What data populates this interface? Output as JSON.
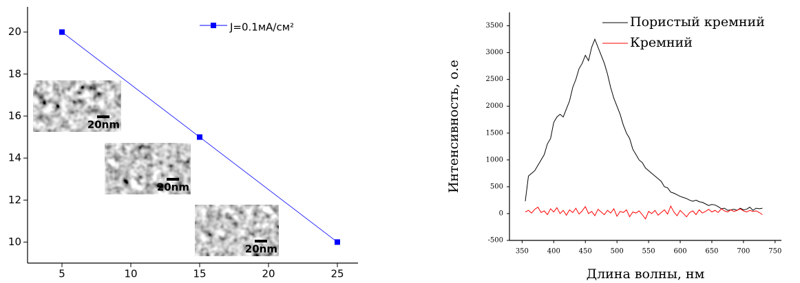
{
  "chart_data": [
    {
      "type": "line",
      "x": [
        5,
        15,
        25
      ],
      "xlim": [
        2.5,
        26.5
      ],
      "ylim": [
        9,
        21.2
      ],
      "xticks": [
        5,
        10,
        15,
        20,
        25
      ],
      "yticks": [
        10,
        12,
        14,
        16,
        18,
        20
      ],
      "series": [
        {
          "name": "J=0.1мА/см²",
          "color": "#0000ff",
          "values": [
            20,
            15,
            10
          ]
        }
      ],
      "annotations": [
        "20nm",
        "20nm",
        "20nm"
      ]
    },
    {
      "type": "line",
      "x_label": "Длина волны, нм",
      "y_label": "Интенсивность, о.е",
      "x": [
        355,
        360,
        365,
        370,
        375,
        380,
        385,
        390,
        395,
        400,
        405,
        410,
        415,
        420,
        425,
        430,
        435,
        440,
        445,
        450,
        455,
        460,
        465,
        470,
        475,
        480,
        485,
        490,
        495,
        500,
        505,
        510,
        515,
        520,
        525,
        530,
        535,
        540,
        545,
        550,
        555,
        560,
        565,
        570,
        575,
        580,
        585,
        590,
        595,
        600,
        605,
        610,
        615,
        620,
        625,
        630,
        635,
        640,
        645,
        650,
        655,
        660,
        665,
        670,
        675,
        680,
        685,
        690,
        695,
        700,
        705,
        710,
        715,
        720,
        725,
        730
      ],
      "xlim": [
        330,
        760
      ],
      "ylim": [
        -500,
        3750
      ],
      "xticks": [
        350,
        400,
        450,
        500,
        550,
        600,
        650,
        700,
        750
      ],
      "yticks": [
        -500,
        0,
        500,
        1000,
        1500,
        2000,
        2500,
        3000,
        3500
      ],
      "series": [
        {
          "name": "Пористый кремний",
          "color": "#000000",
          "values": [
            230,
            700,
            750,
            800,
            900,
            1000,
            1100,
            1300,
            1400,
            1700,
            1800,
            1850,
            1800,
            1950,
            2100,
            2350,
            2500,
            2700,
            2800,
            2950,
            2850,
            3100,
            3250,
            3100,
            2950,
            2800,
            2600,
            2350,
            2150,
            2000,
            1850,
            1650,
            1500,
            1400,
            1200,
            1100,
            1000,
            950,
            850,
            800,
            750,
            700,
            650,
            600,
            500,
            480,
            400,
            380,
            350,
            320,
            300,
            280,
            250,
            230,
            250,
            220,
            210,
            180,
            150,
            170,
            160,
            130,
            90,
            100,
            60,
            70,
            80,
            60,
            100,
            70,
            80,
            120,
            60,
            100,
            90,
            100
          ]
        },
        {
          "name": "Кремний",
          "color": "#ff0000",
          "values": [
            30,
            60,
            10,
            80,
            120,
            20,
            50,
            -20,
            90,
            30,
            110,
            0,
            60,
            -30,
            70,
            20,
            100,
            -10,
            50,
            130,
            0,
            40,
            -40,
            80,
            30,
            -20,
            60,
            10,
            90,
            -50,
            40,
            20,
            70,
            -60,
            30,
            10,
            50,
            -20,
            -100,
            40,
            0,
            60,
            -30,
            20,
            70,
            -10,
            140,
            30,
            -40,
            60,
            0,
            -60,
            20,
            50,
            -20,
            70,
            10,
            40,
            80,
            30,
            60,
            20,
            90,
            50,
            30,
            70,
            40,
            60,
            90,
            50,
            30,
            60,
            40,
            50,
            20,
            -20
          ]
        }
      ]
    }
  ]
}
